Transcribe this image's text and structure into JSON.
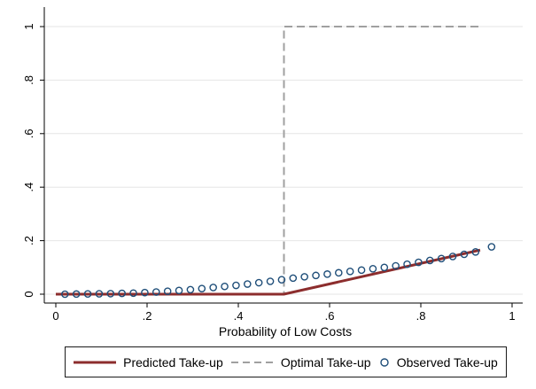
{
  "chart_data": {
    "type": "line",
    "xlabel": "Probability of Low Costs",
    "ylabel": "",
    "xlim": [
      0,
      1
    ],
    "ylim": [
      0,
      1
    ],
    "x_ticks": [
      0,
      0.2,
      0.4,
      0.6,
      0.8,
      1
    ],
    "x_tick_labels": [
      "0",
      ".2",
      ".4",
      ".6",
      ".8",
      "1"
    ],
    "y_ticks": [
      0,
      0.2,
      0.4,
      0.6,
      0.8,
      1
    ],
    "y_tick_labels": [
      "0",
      ".2",
      ".4",
      ".6",
      ".8",
      "1"
    ],
    "grid": "horizontal",
    "legend_position": "bottom",
    "series": [
      {
        "name": "Predicted Take-up",
        "style": "solid-line",
        "color": "#8c2d2d",
        "x": [
          0.0,
          0.5,
          0.93
        ],
        "y": [
          0.0,
          0.0,
          0.165
        ]
      },
      {
        "name": "Optimal Take-up",
        "style": "dashed-line",
        "color": "#a0a0a0",
        "x": [
          0.0,
          0.5,
          0.5,
          0.93
        ],
        "y": [
          0.0,
          0.0,
          1.0,
          1.0
        ]
      },
      {
        "name": "Observed Take-up",
        "style": "hollow-circle",
        "color": "#1f4e79",
        "x": [
          0.02,
          0.045,
          0.07,
          0.095,
          0.12,
          0.145,
          0.17,
          0.195,
          0.22,
          0.245,
          0.27,
          0.295,
          0.32,
          0.345,
          0.37,
          0.395,
          0.42,
          0.445,
          0.47,
          0.495,
          0.52,
          0.545,
          0.57,
          0.595,
          0.62,
          0.645,
          0.67,
          0.695,
          0.72,
          0.745,
          0.77,
          0.795,
          0.82,
          0.845,
          0.87,
          0.895,
          0.92,
          0.955
        ],
        "y": [
          0.0,
          0.0005,
          0.001,
          0.0015,
          0.002,
          0.003,
          0.004,
          0.006,
          0.008,
          0.011,
          0.014,
          0.017,
          0.021,
          0.025,
          0.029,
          0.033,
          0.038,
          0.043,
          0.048,
          0.054,
          0.06,
          0.065,
          0.07,
          0.075,
          0.08,
          0.085,
          0.09,
          0.095,
          0.1,
          0.106,
          0.112,
          0.119,
          0.126,
          0.133,
          0.141,
          0.149,
          0.158,
          0.177
        ]
      }
    ]
  }
}
